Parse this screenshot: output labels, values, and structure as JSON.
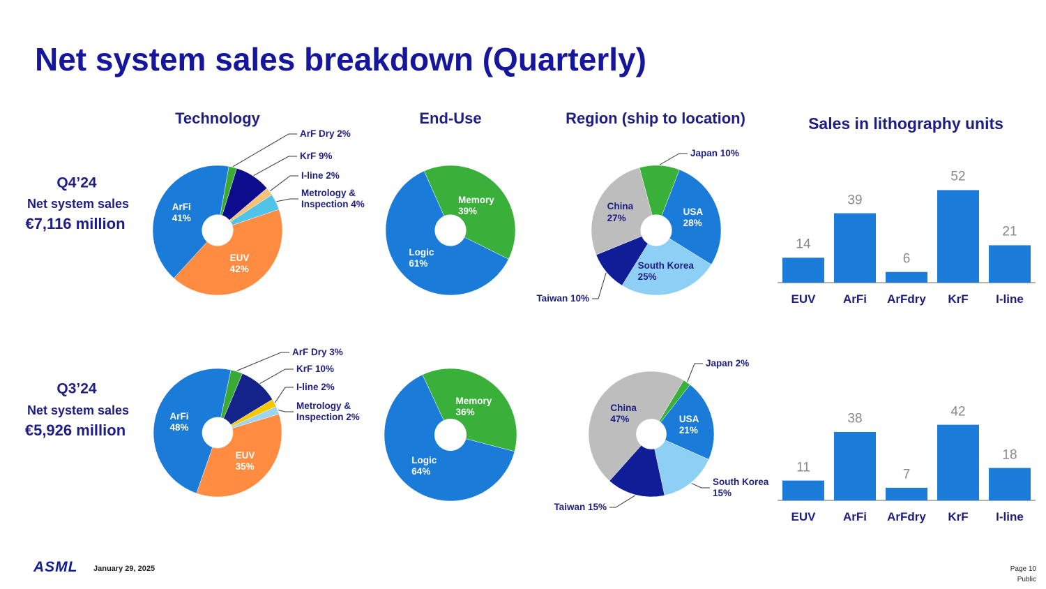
{
  "title": "Net system sales breakdown (Quarterly)",
  "rows": [
    {
      "period": "Q4’24",
      "label": "Net system sales",
      "amount": "€7,116 million"
    },
    {
      "period": "Q3’24",
      "label": "Net system sales",
      "amount": "€5,926 million"
    }
  ],
  "chart_data": [
    {
      "type": "pie",
      "title": "Technology",
      "categories": [
        "ArF Dry",
        "KrF",
        "I-line",
        "Metrology & Inspection",
        "EUV",
        "ArFi"
      ],
      "values": [
        2,
        9,
        2,
        4,
        42,
        41
      ],
      "value_labels": [
        "2%",
        "9%",
        "2%",
        "4%",
        "42%",
        "41%"
      ],
      "colors": [
        "#3aaa35",
        "#0c0c8c",
        "#f5c27a",
        "#4fc3e8",
        "#ff8c40",
        "#1b7bd9"
      ]
    },
    {
      "type": "pie",
      "title": "End-Use",
      "categories": [
        "Memory",
        "Logic"
      ],
      "values": [
        39,
        61
      ],
      "value_labels": [
        "39%",
        "61%"
      ],
      "colors": [
        "#38b03a",
        "#1b7bd9"
      ]
    },
    {
      "type": "pie",
      "title": "Region (ship to location)",
      "categories": [
        "Japan",
        "USA",
        "South Korea",
        "Taiwan",
        "China"
      ],
      "values": [
        10,
        28,
        25,
        10,
        27
      ],
      "value_labels": [
        "10%",
        "28%",
        "25%",
        "10%",
        "27%"
      ],
      "colors": [
        "#38b03a",
        "#1b7bd9",
        "#8ecff5",
        "#0f1d96",
        "#bdbdbd"
      ]
    },
    {
      "type": "bar",
      "title": "Sales in lithography units",
      "categories": [
        "EUV",
        "ArFi",
        "ArFdry",
        "KrF",
        "I-line"
      ],
      "values": [
        14,
        39,
        6,
        52,
        21
      ],
      "color": "#1b7bd9"
    },
    {
      "type": "pie",
      "categories": [
        "ArF Dry",
        "KrF",
        "I-line",
        "Metrology & Inspection",
        "EUV",
        "ArFi"
      ],
      "values": [
        3,
        10,
        2,
        2,
        35,
        48
      ],
      "value_labels": [
        "3%",
        "10%",
        "2%",
        "2%",
        "35%",
        "48%"
      ],
      "colors": [
        "#3aaa35",
        "#14238a",
        "#f5c800",
        "#9dd4f0",
        "#ff8c40",
        "#1b7bd9"
      ]
    },
    {
      "type": "pie",
      "categories": [
        "Memory",
        "Logic"
      ],
      "values": [
        36,
        64
      ],
      "value_labels": [
        "36%",
        "64%"
      ],
      "colors": [
        "#38b03a",
        "#1b7bd9"
      ]
    },
    {
      "type": "pie",
      "categories": [
        "Japan",
        "USA",
        "South Korea",
        "Taiwan",
        "China"
      ],
      "values": [
        2,
        21,
        15,
        15,
        47
      ],
      "value_labels": [
        "2%",
        "21%",
        "15%",
        "15%",
        "47%"
      ],
      "colors": [
        "#38b03a",
        "#1b7bd9",
        "#8ecff5",
        "#0f1d96",
        "#bdbdbd"
      ]
    },
    {
      "type": "bar",
      "categories": [
        "EUV",
        "ArFi",
        "ArFdry",
        "KrF",
        "I-line"
      ],
      "values": [
        11,
        38,
        7,
        42,
        18
      ],
      "color": "#1b7bd9"
    }
  ],
  "footer": {
    "logo": "ASML",
    "date": "January 29, 2025",
    "page": "Page 10",
    "classification": "Public"
  }
}
